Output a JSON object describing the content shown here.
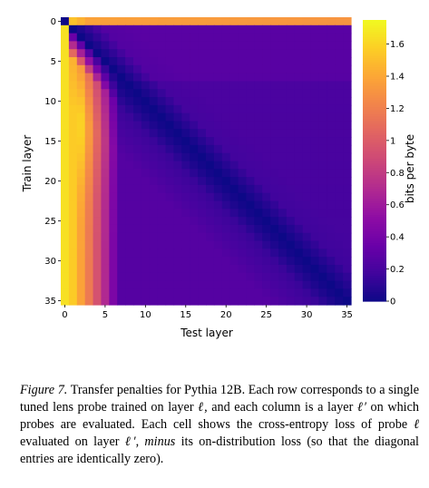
{
  "chart_data": {
    "type": "heatmap",
    "title": "",
    "xlabel": "Test layer",
    "ylabel": "Train layer",
    "colorbar_label": "bits per byte",
    "x_ticks": [
      0,
      5,
      10,
      15,
      20,
      25,
      30,
      35
    ],
    "y_ticks": [
      0,
      5,
      10,
      15,
      20,
      25,
      30,
      35
    ],
    "colorbar_ticks": [
      {
        "value": 0,
        "label": "0"
      },
      {
        "value": 0.2,
        "label": "0.2"
      },
      {
        "value": 0.4,
        "label": "0.4"
      },
      {
        "value": 0.6,
        "label": "0.6"
      },
      {
        "value": 0.8,
        "label": "0.8"
      },
      {
        "value": 1,
        "label": "1"
      },
      {
        "value": 1.2,
        "label": "1.2"
      },
      {
        "value": 1.4,
        "label": "1.4"
      },
      {
        "value": 1.6,
        "label": "1.6"
      }
    ],
    "zlim": [
      0,
      1.75
    ],
    "n_layers": 36,
    "colormap": "plasma",
    "approximate_values": {
      "diagonal": 0,
      "train_0_row": 1.6,
      "test_0_column": 1.65,
      "early_test_layers_1_to_6": 1.2,
      "late_layer_block": 0.15
    }
  },
  "caption": {
    "figure_label": "Figure 7.",
    "text_before_ell": " Transfer penalties for Pythia 12B. Each row corresponds to a single tuned lens probe trained on layer ",
    "text_after_ell": ", and each column is a layer ",
    "text_after_ellprime": " on which probes are evaluated. Each cell shows the cross-entropy loss of probe ",
    "text_after_ell2": " evaluated on layer ",
    "text_before_minus": ", ",
    "minus": "minus",
    "text_end": " its on-distribution loss (so that the diagonal entries are identically zero).",
    "ell": "ℓ",
    "ell_prime": "ℓ′"
  }
}
